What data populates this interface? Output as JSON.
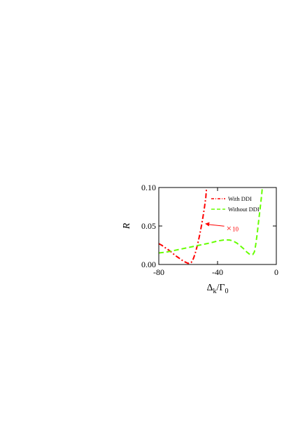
{
  "chart_data": {
    "type": "line",
    "title": "",
    "xlabel": "Δk/Γ0",
    "xlabel_main": "Δ",
    "xlabel_sub1": "k",
    "xlabel_mid": "/Γ",
    "xlabel_sub2": "0",
    "ylabel": "R",
    "xlim": [
      -80,
      0
    ],
    "ylim": [
      0,
      0.1
    ],
    "x_ticks": [
      -80,
      -40,
      0
    ],
    "x_tick_labels": [
      "-80",
      "-40",
      "0"
    ],
    "y_ticks": [
      0,
      0.05,
      0.1
    ],
    "y_tick_labels": [
      "0.00",
      "0.05",
      "0.10"
    ],
    "grid": false,
    "legend_position": "top-right",
    "series": [
      {
        "name": "With DDI",
        "color": "#ff0000",
        "style": "dash-dot",
        "x": [
          -80,
          -78,
          -75,
          -72,
          -69,
          -66,
          -63,
          -60,
          -58,
          -57,
          -56,
          -55,
          -54,
          -53,
          -52,
          -51,
          -50,
          -49,
          -48,
          -47.5
        ],
        "y": [
          0.027,
          0.025,
          0.021,
          0.017,
          0.012,
          0.008,
          0.004,
          0.0015,
          0.0025,
          0.005,
          0.01,
          0.016,
          0.023,
          0.031,
          0.04,
          0.05,
          0.061,
          0.073,
          0.087,
          0.1
        ]
      },
      {
        "name": "Without DDI",
        "color": "#66ff00",
        "style": "dashed",
        "x": [
          -80,
          -75,
          -70,
          -65,
          -60,
          -55,
          -50,
          -45,
          -40,
          -35,
          -32,
          -30,
          -27,
          -25,
          -22,
          -20,
          -18,
          -16,
          -15,
          -14.5,
          -14,
          -13,
          -12,
          -11,
          -10,
          -9.5
        ],
        "y": [
          0.015,
          0.016,
          0.018,
          0.02,
          0.022,
          0.024,
          0.026,
          0.028,
          0.0305,
          0.032,
          0.0318,
          0.031,
          0.028,
          0.025,
          0.02,
          0.016,
          0.013,
          0.013,
          0.016,
          0.02,
          0.026,
          0.04,
          0.057,
          0.073,
          0.09,
          0.1
        ]
      }
    ],
    "annotation": {
      "symbol": "×",
      "text": "10",
      "color": "#ff0000",
      "arrow_to": [
        -48.5,
        0.053
      ],
      "text_at": [
        -34,
        0.047
      ]
    }
  }
}
